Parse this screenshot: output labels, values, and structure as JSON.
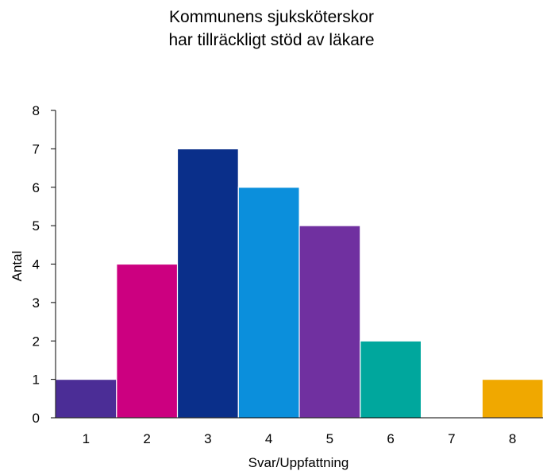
{
  "chart_data": {
    "type": "bar",
    "title_lines": [
      "Kommunens sjuksköterskor",
      "har tillräckligt stöd av läkare"
    ],
    "xlabel": "Svar/Uppfattning",
    "ylabel": "Antal",
    "categories": [
      "1",
      "2",
      "3",
      "4",
      "5",
      "6",
      "7",
      "8"
    ],
    "values": [
      1,
      4,
      7,
      6,
      5,
      2,
      0,
      1
    ],
    "colors": [
      "#4b2d96",
      "#cc0080",
      "#0a2f8a",
      "#0b8fdc",
      "#7030a0",
      "#00a79d",
      "#ffffff",
      "#f0a800"
    ],
    "ylim": [
      0,
      8
    ],
    "yticks": [
      "0",
      "1",
      "2",
      "3",
      "4",
      "5",
      "6",
      "7",
      "8"
    ],
    "grid": false,
    "legend": "none"
  }
}
